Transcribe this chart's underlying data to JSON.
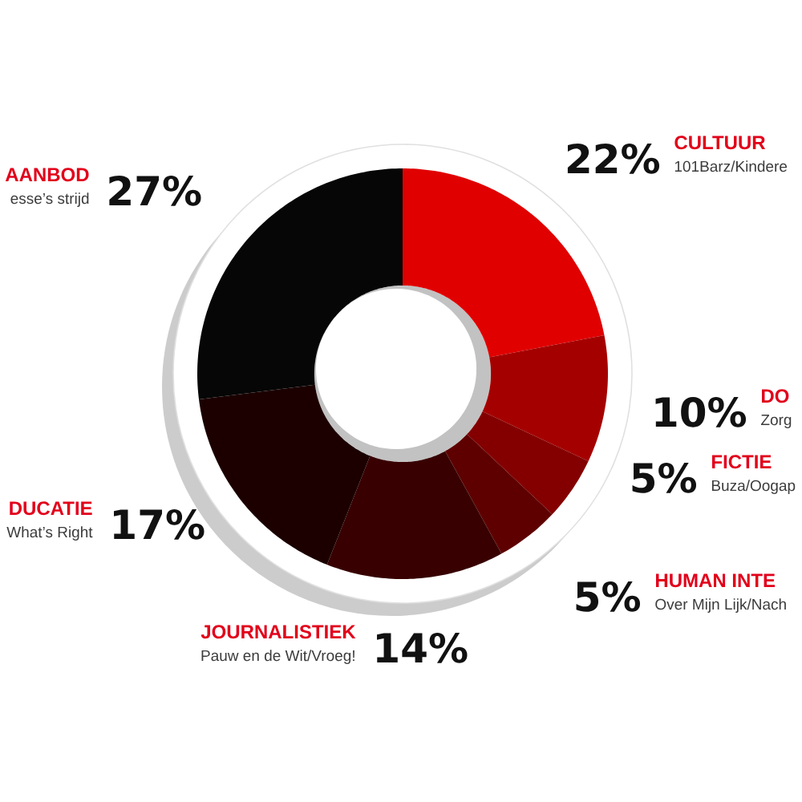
{
  "chart_data": {
    "type": "donut",
    "categories": [
      "CULTUUR",
      "DO",
      "FICTIE",
      "HUMAN INTE",
      "JOURNALISTIEK",
      "DUCATIE",
      "AANBOD"
    ],
    "values": [
      22,
      10,
      5,
      5,
      14,
      17,
      27
    ],
    "colors": [
      "#e00000",
      "#a50000",
      "#840000",
      "#5e0000",
      "#380000",
      "#1c0000",
      "#060606"
    ],
    "value_labels": [
      "22%",
      "10%",
      "5%",
      "5%",
      "14%",
      "17%",
      "27%"
    ],
    "annotations": [
      "101Barz/Kindere",
      "Zorg",
      "Buza/Oogap",
      "Over Mijn Lijk/Nach",
      "Pauw en de Wit/Vroeg!",
      "What’s Right",
      "esse’s strijd"
    ]
  }
}
